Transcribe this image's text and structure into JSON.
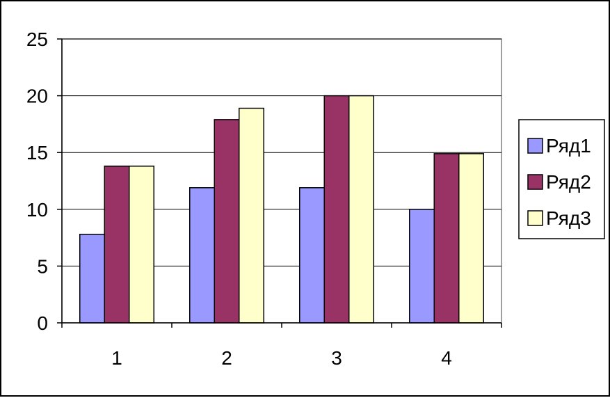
{
  "chart_data": {
    "type": "bar",
    "title": "",
    "xlabel": "",
    "ylabel": "",
    "categories": [
      "1",
      "2",
      "3",
      "4"
    ],
    "series": [
      {
        "name": "Ряд1",
        "color": "#9999FF",
        "values": [
          7.8,
          11.9,
          11.9,
          10
        ]
      },
      {
        "name": "Ряд2",
        "color": "#993366",
        "values": [
          13.8,
          17.9,
          20,
          14.9
        ]
      },
      {
        "name": "Ряд3",
        "color": "#FFFFCC",
        "values": [
          13.8,
          18.9,
          20,
          14.9
        ]
      }
    ],
    "ylim": [
      0,
      25
    ],
    "yticks": [
      0,
      5,
      10,
      15,
      20,
      25
    ],
    "grid": true,
    "legend": "right"
  }
}
